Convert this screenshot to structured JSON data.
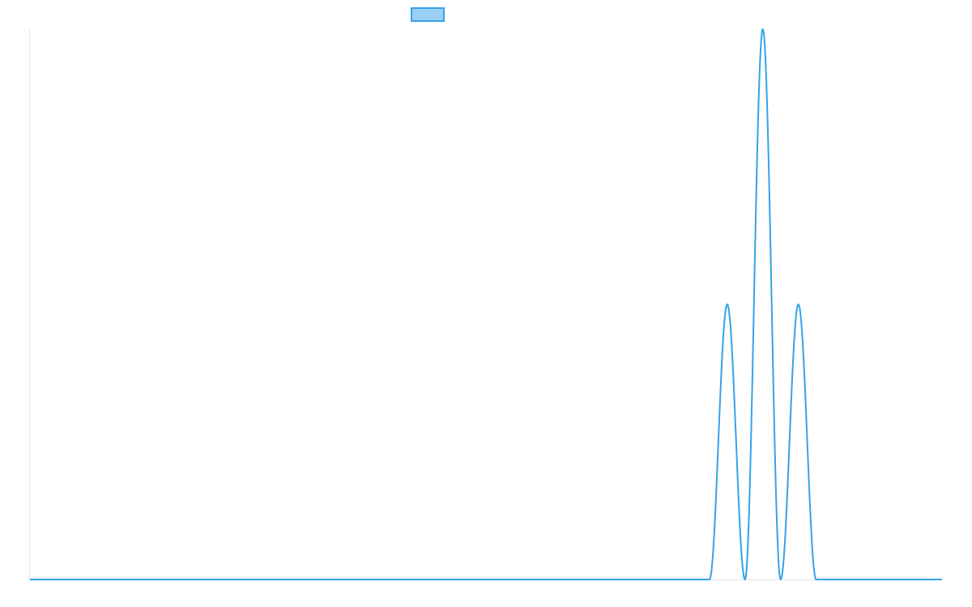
{
  "chart_data": {
    "type": "line",
    "title": "",
    "xlabel": "",
    "ylabel": "",
    "xlim": [
      0,
      100
    ],
    "ylim": [
      0,
      1
    ],
    "grid": false,
    "legend": "top",
    "series": [
      {
        "color": "#36a2eb",
        "fill": "#9ad0f5",
        "pulses": [
          {
            "start": 74.5,
            "end": 78.4,
            "peak": 0.5
          },
          {
            "start": 78.4,
            "end": 82.3,
            "peak": 1.0
          },
          {
            "start": 82.3,
            "end": 86.2,
            "peak": 0.5
          }
        ]
      }
    ]
  }
}
